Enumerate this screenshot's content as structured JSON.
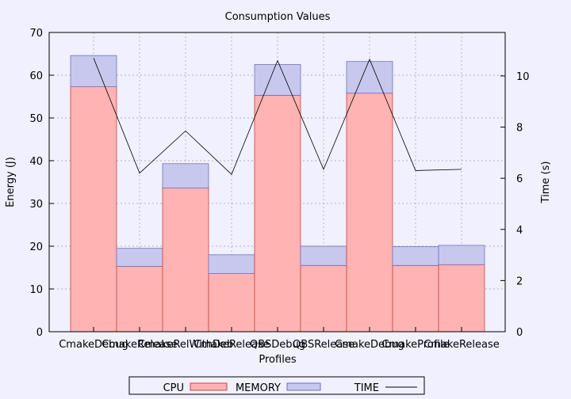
{
  "chart_data": {
    "type": "bar",
    "title": "Consumption Values",
    "xlabel": "Profiles",
    "ylabel": "Energy (J)",
    "y2label": "Time (s)",
    "stacked": true,
    "categories": [
      "CmakeDebug",
      "CmakeRelease",
      "CmakeRelWithDeb",
      "CmakeRelease",
      "QBSDebug",
      "QBSRelease",
      "CmakeDebug",
      "CmakeProfile",
      "CmakeRelease"
    ],
    "series": [
      {
        "name": "CPU",
        "axis": "y1",
        "kind": "bar",
        "color": "#ffb3b3",
        "stroke": "#d04040",
        "values": [
          57.3,
          15.3,
          33.6,
          13.6,
          55.3,
          15.5,
          55.8,
          15.5,
          15.7
        ]
      },
      {
        "name": "MEMORY",
        "axis": "y1",
        "kind": "bar",
        "color": "#c8c8ee",
        "stroke": "#7070c0",
        "values": [
          7.3,
          4.2,
          5.7,
          4.4,
          7.2,
          4.5,
          7.4,
          4.4,
          4.5
        ]
      },
      {
        "name": "TIME",
        "axis": "y2",
        "kind": "line",
        "color": "#000000",
        "values": [
          10.7,
          6.2,
          7.85,
          6.15,
          10.6,
          6.35,
          10.65,
          6.3,
          6.35
        ]
      }
    ],
    "ylim": [
      0,
      70
    ],
    "yticks": [
      0,
      10,
      20,
      30,
      40,
      50,
      60,
      70
    ],
    "y2lim": [
      0,
      11.7
    ],
    "y2ticks": [
      0,
      2,
      4,
      6,
      8,
      10
    ],
    "grid": true,
    "legend": {
      "position": "bottom",
      "labels": [
        "CPU",
        "MEMORY",
        "TIME"
      ]
    }
  }
}
